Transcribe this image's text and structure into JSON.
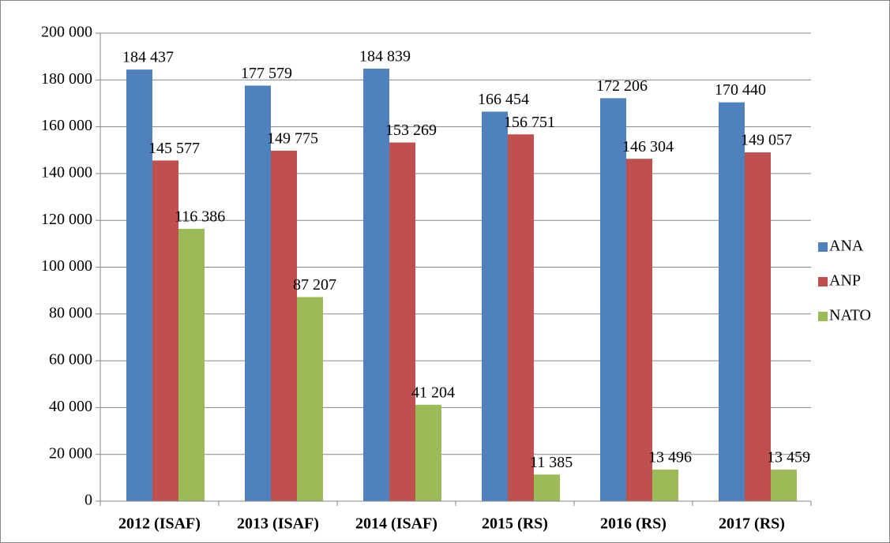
{
  "chart_data": {
    "type": "bar",
    "categories": [
      "2012 (ISAF)",
      "2013 (ISAF)",
      "2014 (ISAF)",
      "2015 (RS)",
      "2016 (RS)",
      "2017 (RS)"
    ],
    "series": [
      {
        "name": "ANA",
        "color": "#4f81bd",
        "values": [
          184437,
          177579,
          184839,
          166454,
          172206,
          170440
        ],
        "value_labels": [
          "184 437",
          "177 579",
          "184 839",
          "166 454",
          "172 206",
          "170 440"
        ]
      },
      {
        "name": "ANP",
        "color": "#c0504d",
        "values": [
          145577,
          149775,
          153269,
          156751,
          146304,
          149057
        ],
        "value_labels": [
          "145 577",
          "149 775",
          "153 269",
          "156 751",
          "146 304",
          "149 057"
        ]
      },
      {
        "name": "NATO",
        "color": "#9bbb59",
        "values": [
          116386,
          87207,
          41204,
          11385,
          13496,
          13459
        ],
        "value_labels": [
          "116 386",
          "87 207",
          "41 204",
          "11 385",
          "13 496",
          "13 459"
        ]
      }
    ],
    "ylim": [
      0,
      200000
    ],
    "yticks": [
      0,
      {
        "value": 20000,
        "label": "20 000"
      },
      {
        "value": 40000,
        "label": "40 000"
      },
      {
        "value": 60000,
        "label": "60 000"
      },
      {
        "value": 80000,
        "label": "80 000"
      },
      {
        "value": 100000,
        "label": "100 000"
      },
      {
        "value": 120000,
        "label": "120 000"
      },
      {
        "value": 140000,
        "label": "140 000"
      },
      {
        "value": 160000,
        "label": "160 000"
      },
      {
        "value": 180000,
        "label": "180 000"
      },
      {
        "value": 200000,
        "label": "200 000"
      }
    ],
    "grid": true,
    "legend": "right"
  }
}
